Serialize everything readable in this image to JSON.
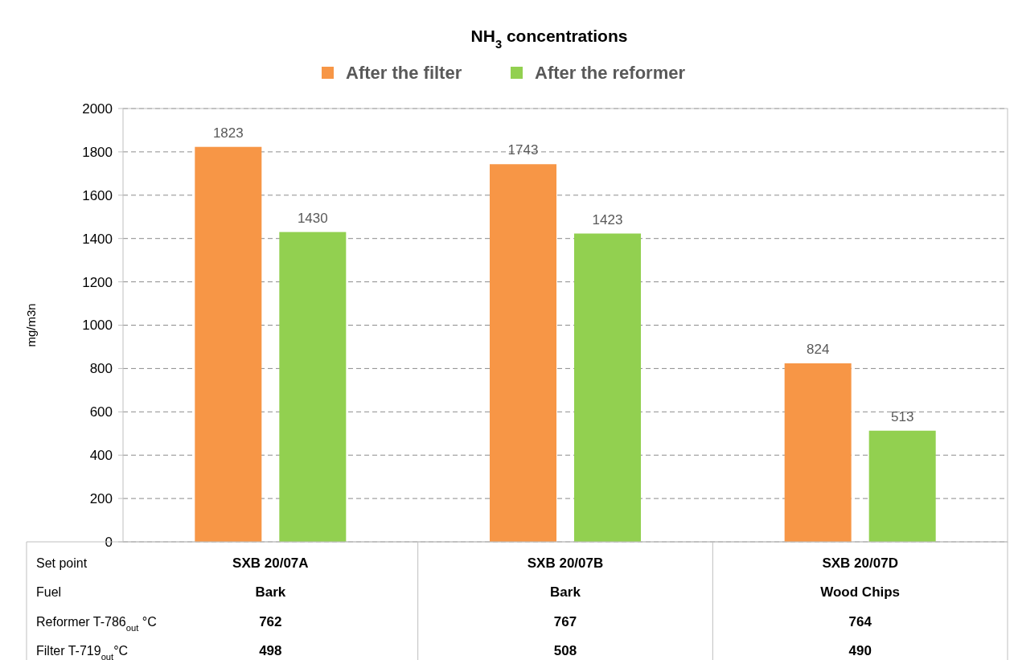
{
  "chart_data": {
    "type": "bar",
    "title": "NH$_{3}$ concentrations",
    "ylabel": "mg/m3n",
    "categories": [
      "SXB 20/07A",
      "SXB 20/07B",
      "SXB 20/07D"
    ],
    "series": [
      {
        "name": "After the filter",
        "color": "#f79646",
        "values": [
          1823,
          1743,
          824
        ]
      },
      {
        "name": "After the reformer",
        "color": "#92d050",
        "values": [
          1430,
          1423,
          513
        ]
      }
    ],
    "ylim": [
      0,
      2000
    ],
    "yticks": [
      0,
      200,
      400,
      600,
      800,
      1000,
      1200,
      1400,
      1600,
      1800,
      2000
    ],
    "grid": "y",
    "legend": "top",
    "data_labels": true,
    "annotations": [
      "Set point",
      "Fuel",
      "Bark",
      "Bark",
      "Wood Chips",
      "Reformer T-786$_{out}$ °C",
      "762",
      "767",
      "764",
      "Filter T-719$_{out}$°C",
      "498",
      "508",
      "490"
    ]
  }
}
